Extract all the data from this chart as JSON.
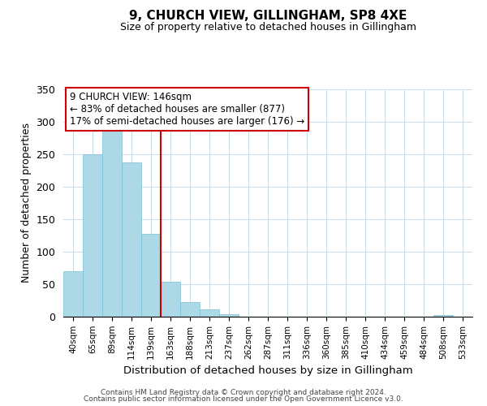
{
  "title": "9, CHURCH VIEW, GILLINGHAM, SP8 4XE",
  "subtitle": "Size of property relative to detached houses in Gillingham",
  "xlabel": "Distribution of detached houses by size in Gillingham",
  "ylabel": "Number of detached properties",
  "bar_labels": [
    "40sqm",
    "65sqm",
    "89sqm",
    "114sqm",
    "139sqm",
    "163sqm",
    "188sqm",
    "213sqm",
    "237sqm",
    "262sqm",
    "287sqm",
    "311sqm",
    "336sqm",
    "360sqm",
    "385sqm",
    "410sqm",
    "434sqm",
    "459sqm",
    "484sqm",
    "508sqm",
    "533sqm"
  ],
  "bar_values": [
    70,
    250,
    287,
    237,
    128,
    54,
    22,
    11,
    4,
    0,
    0,
    0,
    0,
    0,
    0,
    0,
    0,
    0,
    0,
    2,
    0
  ],
  "bar_color": "#add8e6",
  "bar_edge_color": "#7bbfd8",
  "vline_x": 4.5,
  "vline_color": "#cc0000",
  "annotation_title": "9 CHURCH VIEW: 146sqm",
  "annotation_line1": "← 83% of detached houses are smaller (877)",
  "annotation_line2": "17% of semi-detached houses are larger (176) →",
  "annotation_box_color": "#ffffff",
  "annotation_box_edge": "#cc0000",
  "ylim": [
    0,
    350
  ],
  "yticks": [
    0,
    50,
    100,
    150,
    200,
    250,
    300,
    350
  ],
  "grid_color": "#c8dce8",
  "footer1": "Contains HM Land Registry data © Crown copyright and database right 2024.",
  "footer2": "Contains public sector information licensed under the Open Government Licence v3.0."
}
